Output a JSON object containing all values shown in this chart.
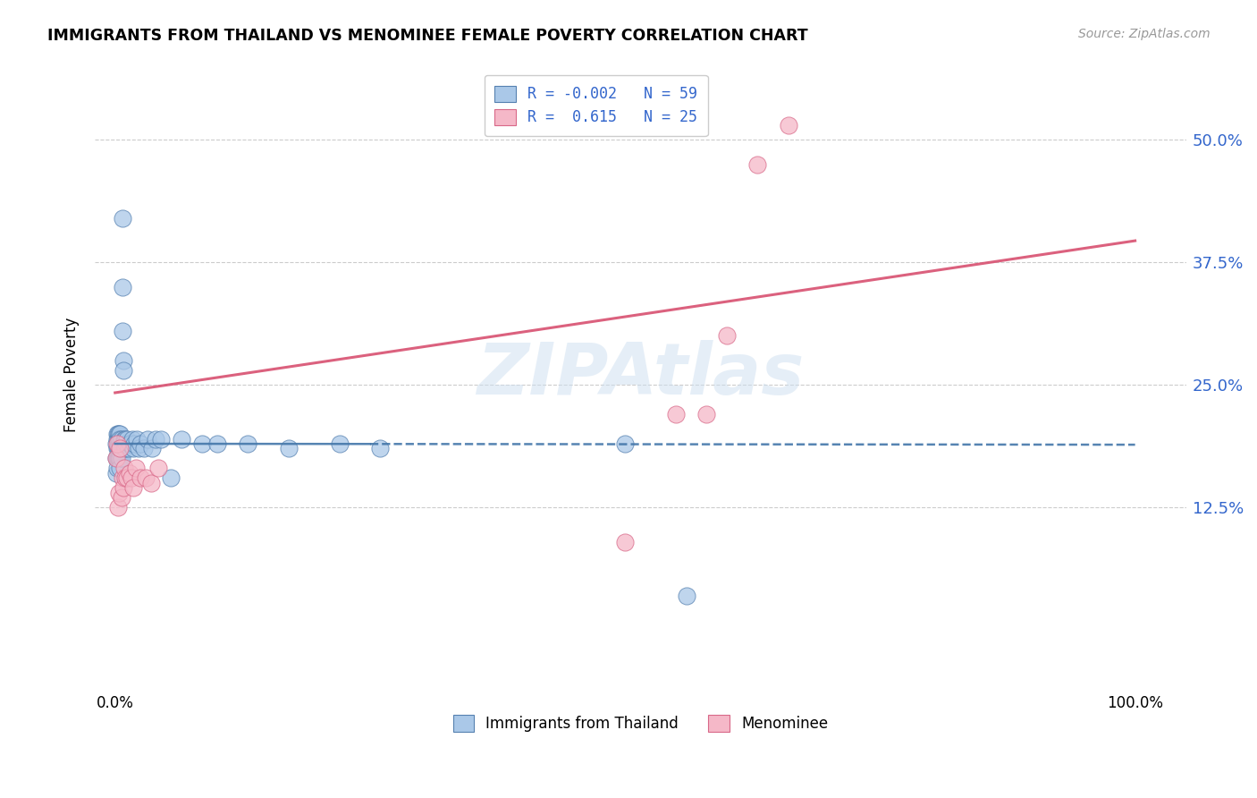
{
  "title": "IMMIGRANTS FROM THAILAND VS MENOMINEE FEMALE POVERTY CORRELATION CHART",
  "source": "Source: ZipAtlas.com",
  "ylabel": "Female Poverty",
  "y_ticks": [
    0.125,
    0.25,
    0.375,
    0.5
  ],
  "y_tick_labels": [
    "12.5%",
    "25.0%",
    "37.5%",
    "50.0%"
  ],
  "x_tick_labels_show": [
    "0.0%",
    "100.0%"
  ],
  "x_ticks_show": [
    0.0,
    1.0
  ],
  "xlim": [
    -0.02,
    1.05
  ],
  "ylim": [
    -0.06,
    0.58
  ],
  "color_blue": "#aac8e8",
  "color_pink": "#f5b8c8",
  "edge_blue": "#5580b0",
  "edge_pink": "#d86888",
  "line_blue_color": "#4477aa",
  "line_pink_color": "#d85070",
  "watermark_text": "ZIPAtlas",
  "watermark_color": "#cddff0",
  "blue_slope": -0.001,
  "blue_intercept": 0.19,
  "pink_slope": 0.155,
  "pink_intercept": 0.242,
  "blue_x": [
    0.001,
    0.001,
    0.001,
    0.002,
    0.002,
    0.002,
    0.002,
    0.002,
    0.003,
    0.003,
    0.003,
    0.003,
    0.004,
    0.004,
    0.004,
    0.004,
    0.005,
    0.005,
    0.005,
    0.005,
    0.005,
    0.006,
    0.006,
    0.006,
    0.007,
    0.007,
    0.007,
    0.008,
    0.008,
    0.009,
    0.009,
    0.01,
    0.01,
    0.011,
    0.012,
    0.013,
    0.014,
    0.015,
    0.017,
    0.018,
    0.019,
    0.021,
    0.023,
    0.025,
    0.028,
    0.032,
    0.036,
    0.04,
    0.045,
    0.055,
    0.065,
    0.085,
    0.1,
    0.13,
    0.17,
    0.22,
    0.26,
    0.5,
    0.56
  ],
  "blue_y": [
    0.19,
    0.175,
    0.16,
    0.2,
    0.195,
    0.185,
    0.175,
    0.165,
    0.2,
    0.195,
    0.185,
    0.175,
    0.2,
    0.195,
    0.185,
    0.175,
    0.2,
    0.195,
    0.185,
    0.175,
    0.165,
    0.195,
    0.185,
    0.175,
    0.42,
    0.35,
    0.305,
    0.275,
    0.265,
    0.195,
    0.185,
    0.195,
    0.185,
    0.19,
    0.195,
    0.185,
    0.19,
    0.19,
    0.195,
    0.185,
    0.19,
    0.195,
    0.185,
    0.19,
    0.185,
    0.195,
    0.185,
    0.195,
    0.195,
    0.155,
    0.195,
    0.19,
    0.19,
    0.19,
    0.185,
    0.19,
    0.185,
    0.19,
    0.035
  ],
  "pink_x": [
    0.001,
    0.002,
    0.003,
    0.004,
    0.005,
    0.006,
    0.007,
    0.008,
    0.009,
    0.01,
    0.012,
    0.014,
    0.016,
    0.018,
    0.02,
    0.025,
    0.03,
    0.035,
    0.042,
    0.5,
    0.55,
    0.58,
    0.6,
    0.63,
    0.66
  ],
  "pink_y": [
    0.175,
    0.19,
    0.125,
    0.14,
    0.185,
    0.135,
    0.155,
    0.145,
    0.165,
    0.155,
    0.155,
    0.16,
    0.155,
    0.145,
    0.165,
    0.155,
    0.155,
    0.15,
    0.165,
    0.09,
    0.22,
    0.22,
    0.3,
    0.475,
    0.515
  ]
}
